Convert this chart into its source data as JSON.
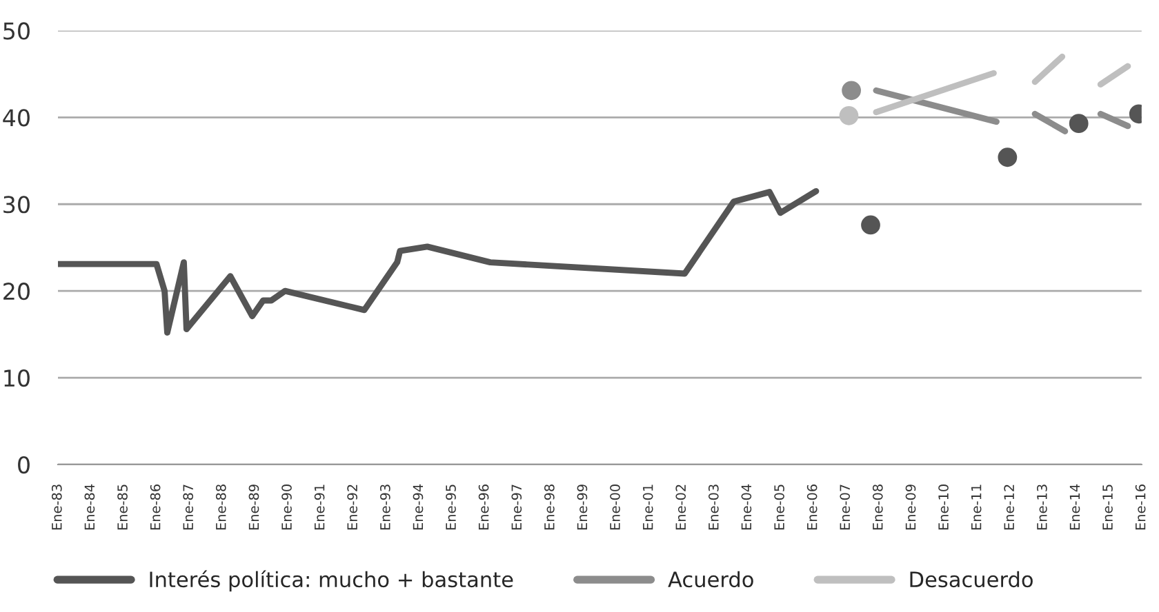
{
  "chart_data": {
    "type": "line",
    "series": [
      {
        "name": "Interés política: mucho + bastante",
        "color": "#555555",
        "x": [
          "1983-01",
          "1986-01",
          "1986-04",
          "1986-05",
          "1986-11",
          "1986-12",
          "1988-04",
          "1988-12",
          "1989-04",
          "1989-07",
          "1989-12",
          "1992-05",
          "1993-05",
          "1993-06",
          "1994-04",
          "1996-03",
          "2002-02",
          "2003-08",
          "2004-09",
          "2005-01",
          "2006-02",
          "2007-01",
          "2007-10",
          "2009-01",
          "2011-12",
          "2013-01",
          "2014-02",
          "2015-01",
          "2015-12"
        ],
        "values": [
          23.1,
          23.1,
          20.0,
          15.2,
          23.3,
          15.6,
          21.7,
          17.1,
          18.9,
          18.9,
          20.0,
          17.8,
          23.3,
          24.6,
          25.1,
          23.3,
          22.0,
          30.3,
          31.4,
          29.0,
          31.5,
          null,
          27.6,
          null,
          35.4,
          null,
          39.3,
          null,
          40.4
        ]
      },
      {
        "name": "Acuerdo",
        "color": "#8c8c8c",
        "x": [
          "2007-03",
          "2007-06",
          "2007-12",
          "2011-08",
          "2012-01",
          "2012-10",
          "2013-09",
          "2014-01",
          "2014-10",
          "2015-08"
        ],
        "values": [
          43.1,
          null,
          43.1,
          39.5,
          null,
          40.4,
          38.4,
          null,
          40.4,
          39.0
        ]
      },
      {
        "name": "Desacuerdo",
        "color": "#bfbfbf",
        "x": [
          "2007-02",
          "2007-06",
          "2007-12",
          "2011-07",
          "2012-01",
          "2012-10",
          "2013-08",
          "2014-01",
          "2014-10",
          "2015-08"
        ],
        "values": [
          40.2,
          null,
          40.6,
          45.1,
          null,
          44.1,
          47.0,
          null,
          43.8,
          45.9
        ]
      }
    ],
    "xlim": [
      "1983-01",
      "2016-01"
    ],
    "xticks": [
      {
        "value": "1983-01",
        "label": "Ene-83"
      },
      {
        "value": "1984-01",
        "label": "Ene-84"
      },
      {
        "value": "1985-01",
        "label": "Ene-85"
      },
      {
        "value": "1986-01",
        "label": "Ene-86"
      },
      {
        "value": "1987-01",
        "label": "Ene-87"
      },
      {
        "value": "1988-01",
        "label": "Ene-88"
      },
      {
        "value": "1989-01",
        "label": "Ene-89"
      },
      {
        "value": "1990-01",
        "label": "Ene-90"
      },
      {
        "value": "1991-01",
        "label": "Ene-91"
      },
      {
        "value": "1992-01",
        "label": "Ene-92"
      },
      {
        "value": "1993-01",
        "label": "Ene-93"
      },
      {
        "value": "1994-01",
        "label": "Ene-94"
      },
      {
        "value": "1995-01",
        "label": "Ene-95"
      },
      {
        "value": "1996-01",
        "label": "Ene-96"
      },
      {
        "value": "1997-01",
        "label": "Ene-97"
      },
      {
        "value": "1998-01",
        "label": "Ene-98"
      },
      {
        "value": "1999-01",
        "label": "Ene-99"
      },
      {
        "value": "2000-01",
        "label": "Ene-00"
      },
      {
        "value": "2001-01",
        "label": "Ene-01"
      },
      {
        "value": "2002-01",
        "label": "Ene-02"
      },
      {
        "value": "2003-01",
        "label": "Ene-03"
      },
      {
        "value": "2004-01",
        "label": "Ene-04"
      },
      {
        "value": "2005-01",
        "label": "Ene-05"
      },
      {
        "value": "2006-01",
        "label": "Ene-06"
      },
      {
        "value": "2007-01",
        "label": "Ene-07"
      },
      {
        "value": "2008-01",
        "label": "Ene-08"
      },
      {
        "value": "2009-01",
        "label": "Ene-09"
      },
      {
        "value": "2010-01",
        "label": "Ene-10"
      },
      {
        "value": "2011-01",
        "label": "Ene-11"
      },
      {
        "value": "2012-01",
        "label": "Ene-12"
      },
      {
        "value": "2013-01",
        "label": "Ene-13"
      },
      {
        "value": "2014-01",
        "label": "Ene-14"
      },
      {
        "value": "2015-01",
        "label": "Ene-15"
      },
      {
        "value": "2016-01",
        "label": "Ene-16"
      }
    ],
    "ylim": [
      0,
      50
    ],
    "yticks": [
      0,
      10,
      20,
      30,
      40,
      50
    ],
    "grid": "y",
    "legend": "bottom",
    "line_style": "solid"
  }
}
